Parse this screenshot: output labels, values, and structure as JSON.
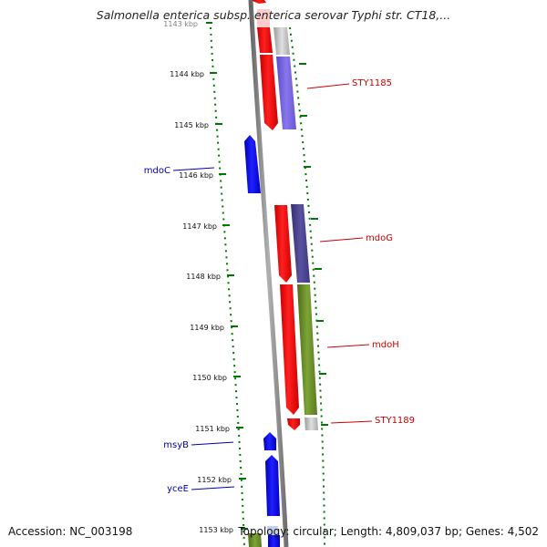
{
  "title": "Salmonella enterica subsp. enterica serovar Typhi str. CT18,...",
  "ticks": [
    "1143 kbp",
    "1144 kbp",
    "1145 kbp",
    "1146 kbp",
    "1147 kbp",
    "1148 kbp",
    "1149 kbp",
    "1150 kbp",
    "1151 kbp",
    "1152 kbp",
    "1153 kbp"
  ],
  "gene_labels": [
    {
      "name": "STY1185",
      "strand": "forward"
    },
    {
      "name": "mdoC",
      "strand": "reverse"
    },
    {
      "name": "mdoG",
      "strand": "forward"
    },
    {
      "name": "mdoH",
      "strand": "forward"
    },
    {
      "name": "STY1189",
      "strand": "forward"
    },
    {
      "name": "msyB",
      "strand": "reverse"
    },
    {
      "name": "yceE",
      "strand": "reverse"
    }
  ],
  "footer": {
    "accession": "Accession: NC_003198",
    "topology": "Topology: circular; Length: 4,809,037 bp; Genes: 4,502"
  },
  "colors": {
    "forward_gene": "#ff0000",
    "reverse_gene": "#0000ff",
    "cog_purple": "#7766dd",
    "cog_dark_purple": "#4a4488",
    "cog_green": "#6b8f2a",
    "cog_gray": "#c0c0c0",
    "backbone": "#888888",
    "tick_green": "#007700"
  }
}
